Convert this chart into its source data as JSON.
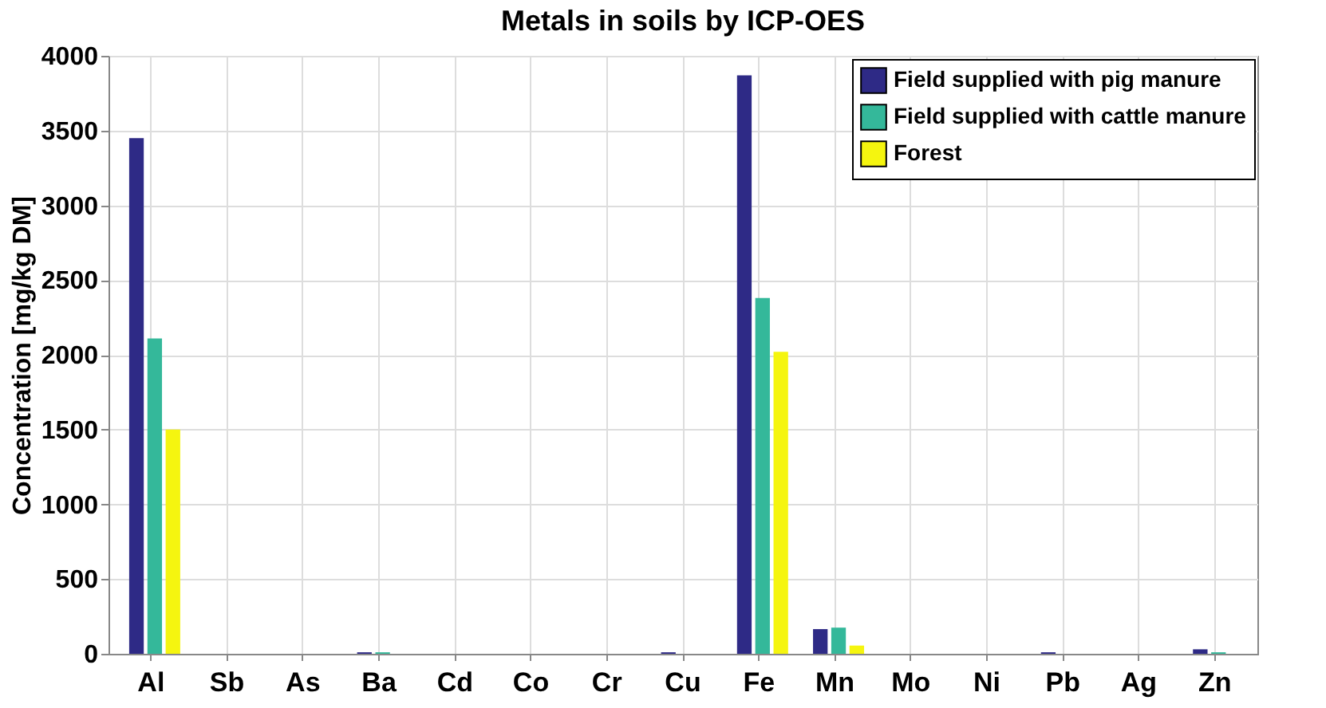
{
  "chart_data": {
    "type": "bar",
    "title": "Metals in soils by ICP-OES",
    "ylabel": "Concentration [mg/kg DM]",
    "categories": [
      "Al",
      "Sb",
      "As",
      "Ba",
      "Cd",
      "Co",
      "Cr",
      "Cu",
      "Fe",
      "Mn",
      "Mo",
      "Ni",
      "Pb",
      "Ag",
      "Zn"
    ],
    "series": [
      {
        "name": "Field supplied with pig manure",
        "color": "#2e2a86",
        "values": [
          3450,
          0,
          0,
          10,
          0,
          0,
          0,
          10,
          3870,
          165,
          0,
          0,
          10,
          0,
          30
        ]
      },
      {
        "name": "Field supplied with cattle manure",
        "color": "#34b89a",
        "values": [
          2110,
          0,
          0,
          10,
          0,
          0,
          0,
          0,
          2380,
          175,
          0,
          0,
          0,
          0,
          10
        ]
      },
      {
        "name": "Forest",
        "color": "#f5f50f",
        "values": [
          1500,
          0,
          0,
          0,
          0,
          0,
          0,
          0,
          2020,
          55,
          0,
          0,
          0,
          0,
          0
        ]
      }
    ],
    "ylim": [
      0,
      4000
    ],
    "yticks": [
      0,
      500,
      1000,
      1500,
      2000,
      2500,
      3000,
      3500,
      4000
    ],
    "grid": true,
    "legend": "top right"
  }
}
